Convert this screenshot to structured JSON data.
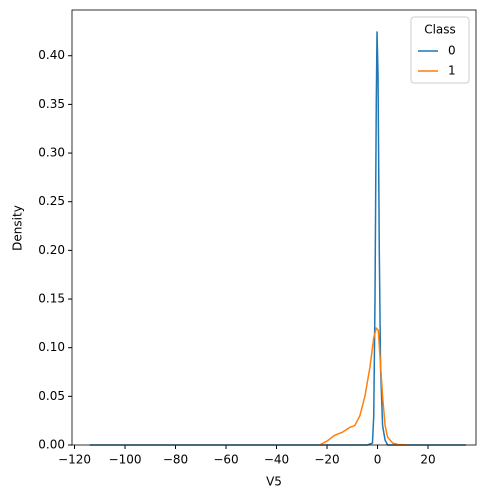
{
  "chart_data": {
    "type": "line",
    "xlabel": "V5",
    "ylabel": "Density",
    "xlim": [
      -121,
      39
    ],
    "ylim": [
      0,
      0.447
    ],
    "xticks": [
      {
        "value": -120,
        "label": "−120"
      },
      {
        "value": -100,
        "label": "−100"
      },
      {
        "value": -80,
        "label": "−80"
      },
      {
        "value": -60,
        "label": "−60"
      },
      {
        "value": -40,
        "label": "−40"
      },
      {
        "value": -20,
        "label": "−20"
      },
      0,
      20
    ],
    "yticks": [
      {
        "value": 0,
        "label": "0.00"
      },
      {
        "value": 0.05,
        "label": "0.05"
      },
      {
        "value": 0.1,
        "label": "0.10"
      },
      {
        "value": 0.15,
        "label": "0.15"
      },
      {
        "value": 0.2,
        "label": "0.20"
      },
      {
        "value": 0.25,
        "label": "0.25"
      },
      {
        "value": 0.3,
        "label": "0.30"
      },
      {
        "value": 0.35,
        "label": "0.35"
      },
      {
        "value": 0.4,
        "label": "0.40"
      }
    ],
    "legend_title": "Class",
    "legend": "upper right",
    "series": [
      {
        "name": "0",
        "color": "#1f77b4",
        "x": [
          -114,
          -10,
          -4,
          -2,
          -1.5,
          -1,
          -0.5,
          -0.2,
          0.2,
          0.7,
          1.2,
          2,
          3,
          4,
          35
        ],
        "values": [
          0,
          0,
          0,
          0.002,
          0.03,
          0.15,
          0.35,
          0.425,
          0.38,
          0.2,
          0.08,
          0.02,
          0.005,
          0,
          0
        ]
      },
      {
        "name": "1",
        "color": "#ff7f0e",
        "x": [
          -23,
          -20,
          -17,
          -14,
          -11,
          -9,
          -7,
          -5,
          -3,
          -1.5,
          -0.5,
          0.3,
          1,
          2,
          3,
          4,
          6,
          8,
          12
        ],
        "values": [
          0,
          0.004,
          0.01,
          0.013,
          0.018,
          0.02,
          0.03,
          0.05,
          0.08,
          0.11,
          0.12,
          0.118,
          0.09,
          0.05,
          0.02,
          0.008,
          0.002,
          0.0005,
          0
        ]
      }
    ]
  }
}
